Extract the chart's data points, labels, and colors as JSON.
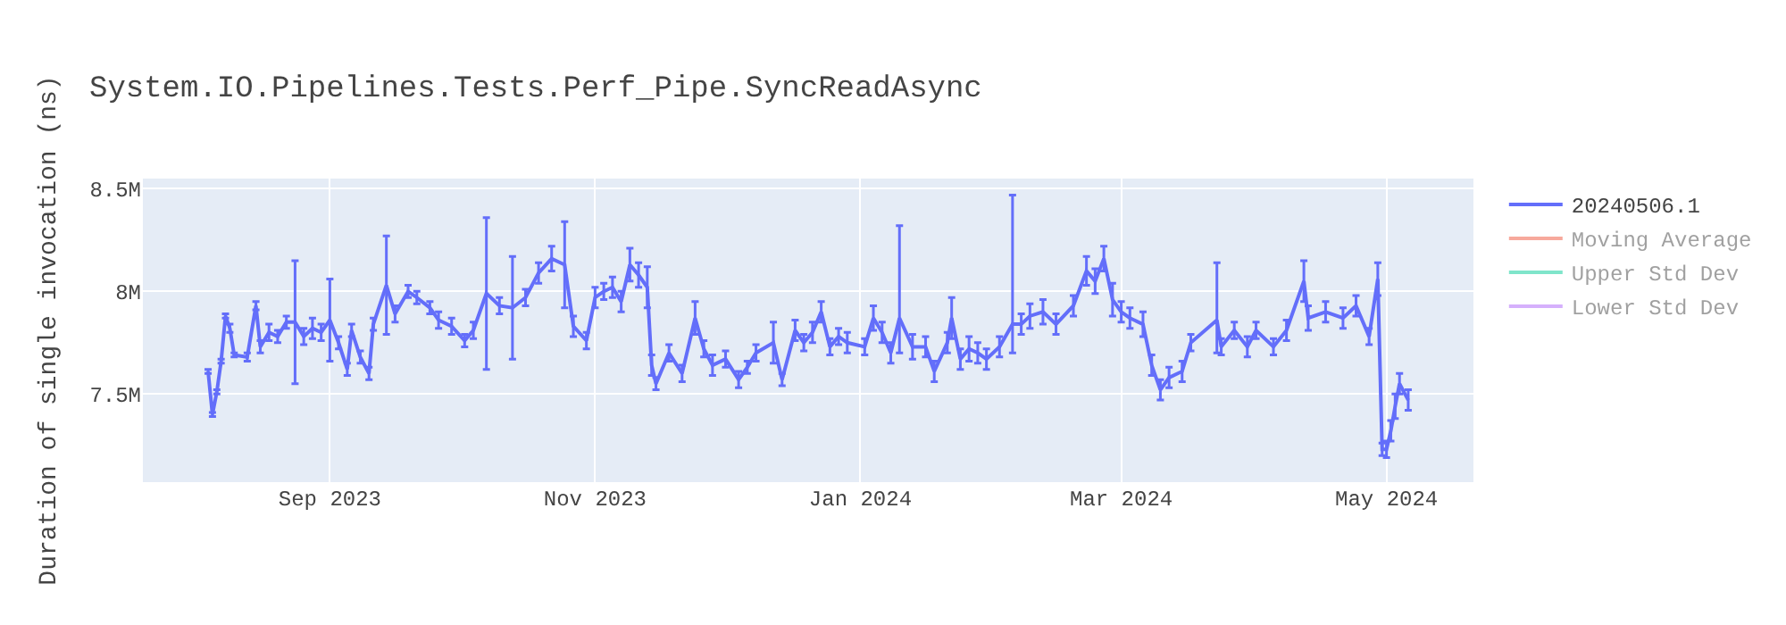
{
  "chart_data": {
    "type": "line",
    "title": "System.IO.Pipelines.Tests.Perf_Pipe.SyncReadAsync",
    "ylabel": "Duration of single invocation (ns)",
    "x": [
      "2023-08-04",
      "2023-08-05",
      "2023-08-06",
      "2023-08-07",
      "2023-08-08",
      "2023-08-09",
      "2023-08-10",
      "2023-08-13",
      "2023-08-15",
      "2023-08-16",
      "2023-08-18",
      "2023-08-20",
      "2023-08-22",
      "2023-08-24",
      "2023-08-26",
      "2023-08-28",
      "2023-08-30",
      "2023-09-01",
      "2023-09-03",
      "2023-09-05",
      "2023-09-06",
      "2023-09-08",
      "2023-09-10",
      "2023-09-11",
      "2023-09-14",
      "2023-09-16",
      "2023-09-19",
      "2023-09-21",
      "2023-09-24",
      "2023-09-26",
      "2023-09-29",
      "2023-10-02",
      "2023-10-04",
      "2023-10-07",
      "2023-10-10",
      "2023-10-13",
      "2023-10-16",
      "2023-10-19",
      "2023-10-22",
      "2023-10-25",
      "2023-10-27",
      "2023-10-30",
      "2023-11-01",
      "2023-11-03",
      "2023-11-05",
      "2023-11-07",
      "2023-11-09",
      "2023-11-11",
      "2023-11-13",
      "2023-11-14",
      "2023-11-15",
      "2023-11-18",
      "2023-11-21",
      "2023-11-24",
      "2023-11-26",
      "2023-11-28",
      "2023-12-01",
      "2023-12-04",
      "2023-12-06",
      "2023-12-08",
      "2023-12-12",
      "2023-12-14",
      "2023-12-17",
      "2023-12-19",
      "2023-12-21",
      "2023-12-23",
      "2023-12-25",
      "2023-12-27",
      "2023-12-29",
      "2024-01-02",
      "2024-01-04",
      "2024-01-06",
      "2024-01-08",
      "2024-01-10",
      "2024-01-13",
      "2024-01-16",
      "2024-01-18",
      "2024-01-21",
      "2024-01-22",
      "2024-01-24",
      "2024-01-26",
      "2024-01-28",
      "2024-01-30",
      "2024-02-02",
      "2024-02-05",
      "2024-02-07",
      "2024-02-09",
      "2024-02-12",
      "2024-02-15",
      "2024-02-19",
      "2024-02-22",
      "2024-02-24",
      "2024-02-26",
      "2024-02-28",
      "2024-03-01",
      "2024-03-03",
      "2024-03-06",
      "2024-03-08",
      "2024-03-10",
      "2024-03-12",
      "2024-03-15",
      "2024-03-17",
      "2024-03-23",
      "2024-03-24",
      "2024-03-27",
      "2024-03-30",
      "2024-04-01",
      "2024-04-05",
      "2024-04-08",
      "2024-04-12",
      "2024-04-13",
      "2024-04-17",
      "2024-04-21",
      "2024-04-24",
      "2024-04-27",
      "2024-04-29",
      "2024-04-30",
      "2024-05-01",
      "2024-05-02",
      "2024-05-03",
      "2024-05-04",
      "2024-05-06"
    ],
    "series": [
      {
        "name": "20240506.1",
        "color": "#636efa",
        "values": [
          7610000,
          7400000,
          7510000,
          7660000,
          7880000,
          7820000,
          7690000,
          7680000,
          7930000,
          7730000,
          7800000,
          7780000,
          7850000,
          7850000,
          7780000,
          7820000,
          7800000,
          7860000,
          7750000,
          7620000,
          7810000,
          7680000,
          7600000,
          7840000,
          8030000,
          7890000,
          8000000,
          7970000,
          7920000,
          7860000,
          7830000,
          7760000,
          7810000,
          7990000,
          7930000,
          7920000,
          7970000,
          8090000,
          8160000,
          8130000,
          7830000,
          7760000,
          7970000,
          8000000,
          8020000,
          7950000,
          8130000,
          8080000,
          8020000,
          7640000,
          7550000,
          7700000,
          7600000,
          7870000,
          7720000,
          7640000,
          7670000,
          7570000,
          7630000,
          7700000,
          7750000,
          7570000,
          7810000,
          7750000,
          7800000,
          7900000,
          7730000,
          7780000,
          7750000,
          7730000,
          7870000,
          7800000,
          7700000,
          7870000,
          7730000,
          7730000,
          7610000,
          7750000,
          7870000,
          7670000,
          7720000,
          7700000,
          7670000,
          7730000,
          7840000,
          7840000,
          7880000,
          7900000,
          7840000,
          7930000,
          8100000,
          8050000,
          8160000,
          7960000,
          7900000,
          7870000,
          7840000,
          7640000,
          7520000,
          7580000,
          7610000,
          7750000,
          7860000,
          7730000,
          7810000,
          7730000,
          7810000,
          7730000,
          7810000,
          8050000,
          7870000,
          7900000,
          7870000,
          7930000,
          7780000,
          8060000,
          7230000,
          7230000,
          7320000,
          7440000,
          7550000,
          7470000
        ],
        "errors": [
          10000,
          10000,
          10000,
          10000,
          10000,
          20000,
          10000,
          20000,
          20000,
          30000,
          40000,
          30000,
          30000,
          300000,
          40000,
          50000,
          40000,
          200000,
          30000,
          30000,
          30000,
          30000,
          30000,
          30000,
          240000,
          40000,
          30000,
          30000,
          30000,
          40000,
          40000,
          30000,
          40000,
          370000,
          40000,
          250000,
          40000,
          50000,
          60000,
          210000,
          50000,
          40000,
          50000,
          40000,
          50000,
          50000,
          80000,
          60000,
          100000,
          50000,
          30000,
          40000,
          40000,
          80000,
          40000,
          50000,
          40000,
          40000,
          30000,
          40000,
          100000,
          30000,
          50000,
          40000,
          50000,
          50000,
          40000,
          40000,
          50000,
          40000,
          60000,
          50000,
          50000,
          [
            7700000,
            8320000
          ],
          60000,
          50000,
          50000,
          50000,
          100000,
          50000,
          60000,
          50000,
          50000,
          50000,
          [
            7700000,
            8470000
          ],
          50000,
          60000,
          60000,
          50000,
          50000,
          70000,
          60000,
          60000,
          80000,
          50000,
          50000,
          60000,
          50000,
          50000,
          50000,
          50000,
          40000,
          [
            7700000,
            8140000
          ],
          40000,
          40000,
          50000,
          40000,
          40000,
          50000,
          100000,
          60000,
          50000,
          50000,
          50000,
          40000,
          80000,
          30000,
          40000,
          50000,
          60000,
          50000,
          50000
        ]
      },
      {
        "name": "Moving Average",
        "color": "#ef553b",
        "values": [
          null,
          null,
          null,
          null,
          null,
          null,
          null,
          null,
          null,
          null,
          null,
          null,
          null,
          null,
          null,
          null,
          null,
          null,
          null,
          null,
          null,
          null,
          null,
          null,
          null,
          null,
          null,
          null,
          null,
          null,
          null,
          null,
          null,
          null,
          null,
          null,
          null,
          null,
          null,
          null,
          null,
          null,
          null,
          null,
          null,
          null,
          null,
          null,
          null,
          null,
          null,
          null,
          null,
          null,
          null,
          null,
          null,
          null,
          null,
          null,
          null,
          null,
          null,
          null,
          null,
          null,
          null,
          null,
          null,
          null,
          null,
          null,
          null,
          null,
          null,
          null,
          null,
          null,
          null,
          null,
          null,
          null,
          null,
          null,
          null,
          null,
          null,
          null,
          null,
          null,
          null,
          null,
          null,
          null,
          null,
          null,
          null,
          null,
          null,
          null,
          null,
          null,
          null,
          null,
          null,
          null,
          null,
          null,
          null,
          null,
          null,
          null,
          null,
          null,
          null,
          null,
          null,
          null,
          null,
          null,
          null,
          null
        ]
      },
      {
        "name": "Upper Std Dev",
        "color": "#00cc96",
        "values": [
          null,
          null,
          null,
          null,
          null,
          null,
          null,
          null,
          null,
          null,
          null,
          null,
          null,
          null,
          null,
          null,
          null,
          null,
          null,
          null,
          null,
          null,
          null,
          null,
          null,
          null,
          null,
          null,
          null,
          null,
          null,
          null,
          null,
          null,
          null,
          null,
          null,
          null,
          null,
          null,
          null,
          null,
          null,
          null,
          null,
          null,
          null,
          null,
          null,
          null,
          null,
          null,
          null,
          null,
          null,
          null,
          null,
          null,
          null,
          null,
          null,
          null,
          null,
          null,
          null,
          null,
          null,
          null,
          null,
          null,
          null,
          null,
          null,
          null,
          null,
          null,
          null,
          null,
          null,
          null,
          null,
          null,
          null,
          null,
          null,
          null,
          null,
          null,
          null,
          null,
          null,
          null,
          null,
          null,
          null,
          null,
          null,
          null,
          null,
          null,
          null,
          null,
          null,
          null,
          null,
          null,
          null,
          null,
          null,
          null,
          null,
          null,
          null,
          null,
          null,
          null,
          null,
          null,
          null,
          null,
          null,
          null
        ]
      },
      {
        "name": "Lower Std Dev",
        "color": "#ab63fa",
        "values": [
          null,
          null,
          null,
          null,
          null,
          null,
          null,
          null,
          null,
          null,
          null,
          null,
          null,
          null,
          null,
          null,
          null,
          null,
          null,
          null,
          null,
          null,
          null,
          null,
          null,
          null,
          null,
          null,
          null,
          null,
          null,
          null,
          null,
          null,
          null,
          null,
          null,
          null,
          null,
          null,
          null,
          null,
          null,
          null,
          null,
          null,
          null,
          null,
          null,
          null,
          null,
          null,
          null,
          null,
          null,
          null,
          null,
          null,
          null,
          null,
          null,
          null,
          null,
          null,
          null,
          null,
          null,
          null,
          null,
          null,
          null,
          null,
          null,
          null,
          null,
          null,
          null,
          null,
          null,
          null,
          null,
          null,
          null,
          null,
          null,
          null,
          null,
          null,
          null,
          null,
          null,
          null,
          null,
          null,
          null,
          null,
          null,
          null,
          null,
          null,
          null,
          null,
          null,
          null,
          null,
          null,
          null,
          null,
          null,
          null,
          null,
          null,
          null,
          null,
          null,
          null,
          null,
          null,
          null,
          null,
          null,
          null
        ]
      }
    ],
    "xlim": [
      "2023-07-20",
      "2024-05-21"
    ],
    "xticks": [
      {
        "value": "2023-09-01",
        "label": "Sep 2023"
      },
      {
        "value": "2023-11-01",
        "label": "Nov 2023"
      },
      {
        "value": "2024-01-01",
        "label": "Jan 2024"
      },
      {
        "value": "2024-03-01",
        "label": "Mar 2024"
      },
      {
        "value": "2024-05-01",
        "label": "May 2024"
      }
    ],
    "ylim": [
      7070000,
      8550000
    ],
    "yticks": [
      {
        "value": 7500000,
        "label": "7.5M"
      },
      {
        "value": 8000000,
        "label": "8M"
      },
      {
        "value": 8500000,
        "label": "8.5M"
      }
    ],
    "grid": true,
    "legend": "right",
    "line_style": "solid"
  }
}
